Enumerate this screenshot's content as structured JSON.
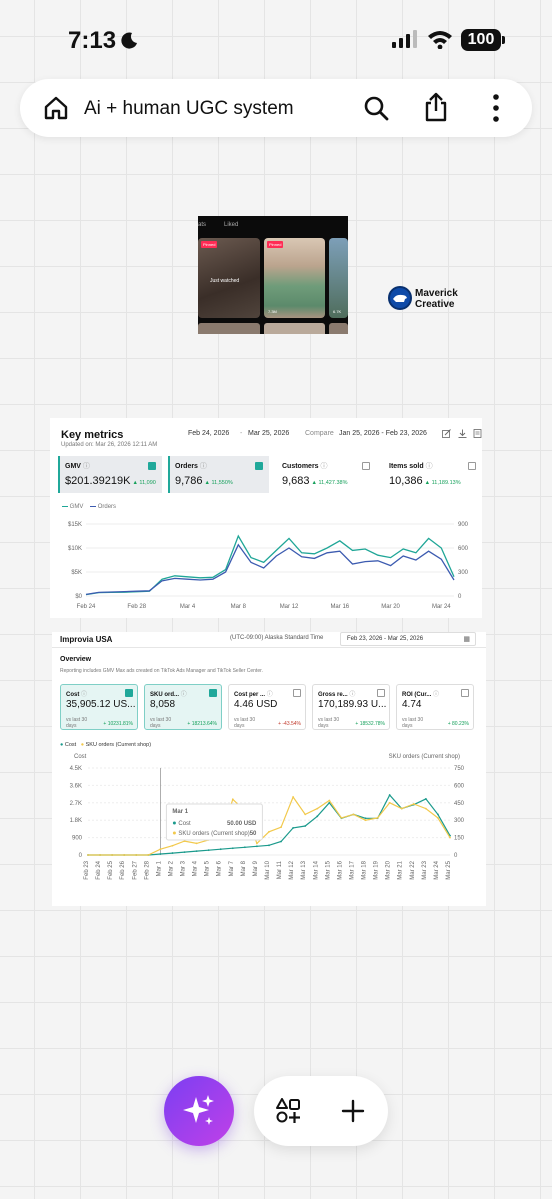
{
  "status": {
    "time": "7:13",
    "battery": "100"
  },
  "top_bar": {
    "title": "Ai + human UGC system"
  },
  "tiktok": {
    "tab_a": "ats",
    "tab_b": "Liked",
    "thumb1_badge": "Pinned",
    "thumb1_caption": "Just watched",
    "thumb2_badge": "Pinned",
    "thumb2_stat": "7.3M",
    "thumb3_stat": "6.7K"
  },
  "maverick": {
    "line1": "Maverick",
    "line2": "Creative"
  },
  "key_metrics": {
    "title": "Key metrics",
    "updated": "Updated on: Mar 26, 2026 12:11 AM",
    "range_start": "Feb 24, 2026",
    "range_sep": "-",
    "range_end": "Mar 25, 2026",
    "compare_label": "Compare",
    "compare_range": "Jan 25, 2026 - Feb 23, 2026",
    "metrics": [
      {
        "label": "GMV",
        "value": "$201.39219K",
        "change": "▲ 11,090",
        "selected": true
      },
      {
        "label": "Orders",
        "value": "9,786",
        "change": "▲ 11,550%",
        "selected": true
      },
      {
        "label": "Customers",
        "value": "9,683",
        "change": "▲ 11,427.38%",
        "selected": false
      },
      {
        "label": "Items sold",
        "value": "10,386",
        "change": "▲ 11,189.13%",
        "selected": false
      }
    ],
    "legend_gmv": "GMV",
    "legend_orders": "Orders",
    "colors": {
      "gmv": "#1fa697",
      "orders": "#3c5bb0",
      "positive": "#15a05b"
    }
  },
  "chart_data": [
    {
      "type": "line",
      "title": "Key metrics",
      "x": [
        "Feb 24",
        "Feb 25",
        "Feb 26",
        "Feb 27",
        "Feb 28",
        "Mar 1",
        "Mar 2",
        "Mar 3",
        "Mar 4",
        "Mar 5",
        "Mar 6",
        "Mar 7",
        "Mar 8",
        "Mar 9",
        "Mar 10",
        "Mar 11",
        "Mar 12",
        "Mar 13",
        "Mar 14",
        "Mar 15",
        "Mar 16",
        "Mar 17",
        "Mar 18",
        "Mar 19",
        "Mar 20",
        "Mar 21",
        "Mar 22",
        "Mar 23",
        "Mar 24",
        "Mar 25"
      ],
      "x_ticks": [
        "Feb 24",
        "Feb 28",
        "Mar 4",
        "Mar 8",
        "Mar 12",
        "Mar 16",
        "Mar 20",
        "Mar 24"
      ],
      "y_left_ticks": [
        "$0",
        "$5K",
        "$10K",
        "$15K"
      ],
      "y_right_ticks": [
        "0",
        "300",
        "600",
        "900"
      ],
      "ylim_left": [
        0,
        15000
      ],
      "ylim_right": [
        0,
        900
      ],
      "series": [
        {
          "name": "GMV",
          "axis": "left",
          "values": [
            300,
            700,
            750,
            800,
            900,
            1000,
            3500,
            4200,
            4000,
            3800,
            3900,
            5500,
            12500,
            8000,
            7000,
            9500,
            12000,
            9000,
            8800,
            10000,
            11500,
            9500,
            9800,
            8500,
            8000,
            9800,
            9000,
            12000,
            10000,
            4000
          ]
        },
        {
          "name": "Orders",
          "axis": "right",
          "values": [
            20,
            45,
            50,
            55,
            60,
            65,
            190,
            220,
            210,
            200,
            210,
            300,
            640,
            420,
            350,
            500,
            600,
            490,
            470,
            540,
            560,
            400,
            430,
            440,
            380,
            500,
            450,
            560,
            460,
            200
          ]
        }
      ]
    },
    {
      "type": "line",
      "title": "Improvia USA",
      "x": [
        "Feb 23",
        "Feb 24",
        "Feb 25",
        "Feb 26",
        "Feb 27",
        "Feb 28",
        "Mar 1",
        "Mar 2",
        "Mar 3",
        "Mar 4",
        "Mar 5",
        "Mar 6",
        "Mar 7",
        "Mar 8",
        "Mar 9",
        "Mar 10",
        "Mar 11",
        "Mar 12",
        "Mar 13",
        "Mar 14",
        "Mar 15",
        "Mar 16",
        "Mar 17",
        "Mar 18",
        "Mar 19",
        "Mar 20",
        "Mar 21",
        "Mar 22",
        "Mar 23",
        "Mar 24",
        "Mar 25"
      ],
      "x_ticks": [
        "Feb 23",
        "Feb 24",
        "Feb 25",
        "Feb 26",
        "Feb 27",
        "Feb 28",
        "Mar 1",
        "Mar 2",
        "Mar 3",
        "Mar 4",
        "Mar 5",
        "Mar 6",
        "Mar 7",
        "Mar 8",
        "Mar 9",
        "Mar 10",
        "Mar 11",
        "Mar 12",
        "Mar 13",
        "Mar 14",
        "Mar 15",
        "Mar 16",
        "Mar 17",
        "Mar 18",
        "Mar 19",
        "Mar 20",
        "Mar 21",
        "Mar 22",
        "Mar 23",
        "Mar 24",
        "Mar 25"
      ],
      "ylabel_left": "Cost",
      "ylabel_right": "SKU orders (Current shop)",
      "y_left_ticks": [
        "0",
        "900",
        "1.8K",
        "2.7K",
        "3.6K",
        "4.5K"
      ],
      "y_right_ticks": [
        "0",
        "150",
        "300",
        "450",
        "600",
        "750"
      ],
      "ylim_left": [
        0,
        4500
      ],
      "ylim_right": [
        0,
        750
      ],
      "series": [
        {
          "name": "Cost",
          "axis": "left",
          "values": [
            0,
            0,
            0,
            0,
            0,
            0,
            50,
            100,
            150,
            200,
            250,
            300,
            350,
            400,
            450,
            500,
            700,
            1400,
            1500,
            2000,
            2700,
            1900,
            2100,
            1900,
            1900,
            3100,
            2400,
            2600,
            2900,
            2100,
            1000
          ]
        },
        {
          "name": "SKU orders (Current shop)",
          "axis": "right",
          "values": [
            0,
            0,
            0,
            0,
            0,
            0,
            50,
            80,
            120,
            100,
            130,
            160,
            480,
            380,
            100,
            200,
            240,
            500,
            350,
            400,
            470,
            320,
            350,
            300,
            320,
            450,
            400,
            440,
            400,
            320,
            150
          ]
        }
      ]
    }
  ],
  "improvia": {
    "name": "Improvia USA",
    "timezone": "(UTC-09:00) Alaska Standard Time",
    "date_range": "Feb 23, 2026   -   Mar 25, 2026",
    "overview": "Overview",
    "note": "Reporting includes GMV Max ads created on TikTok Ads Manager and TikTok Seller Center.",
    "metrics": [
      {
        "label": "Cost",
        "value": "35,905.12 US...",
        "sub": "vs last 30 days",
        "change": "+ 10231.81%",
        "selected": true,
        "up": true
      },
      {
        "label": "SKU ord...",
        "value": "8,058",
        "sub": "vs last 30 days",
        "change": "+ 18213.64%",
        "selected": true,
        "up": true
      },
      {
        "label": "Cost per ...",
        "value": "4.46 USD",
        "sub": "vs last 30 days",
        "change": "+ -43.54%",
        "selected": false,
        "up": false
      },
      {
        "label": "Gross re...",
        "value": "170,189.93 U...",
        "sub": "vs last 30 days",
        "change": "+ 18532.78%",
        "selected": false,
        "up": true
      },
      {
        "label": "ROI (Cur...",
        "value": "4.74",
        "sub": "vs last 30 days",
        "change": "+ 80.23%",
        "selected": false,
        "up": true
      }
    ],
    "legend_cost": "Cost",
    "legend_sku": "SKU orders (Current shop)",
    "tooltip": {
      "title": "Mar 1",
      "row1_label": "Cost",
      "row1_value": "50.00 USD",
      "row2_label": "SKU orders (Current shop)",
      "row2_value": "50"
    },
    "colors": {
      "cost": "#1b9a8c",
      "sku": "#f2c94c",
      "negative": "#c0392b"
    }
  }
}
